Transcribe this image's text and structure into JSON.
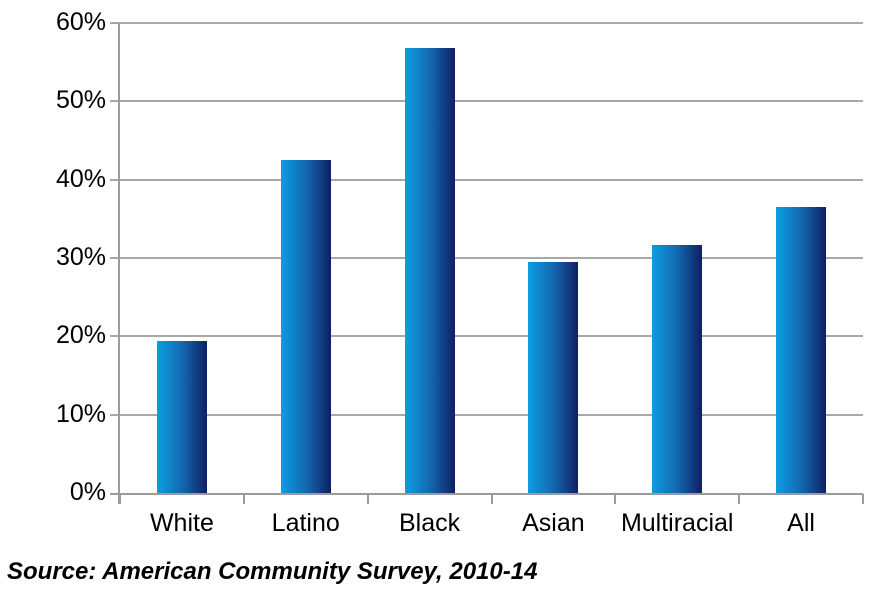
{
  "chart_data": {
    "type": "bar",
    "categories": [
      "White",
      "Latino",
      "Black",
      "Asian",
      "Multiracial",
      "All"
    ],
    "values": [
      19.4,
      42.5,
      56.8,
      29.5,
      31.6,
      36.5
    ],
    "title": "",
    "xlabel": "",
    "ylabel": "",
    "ylim": [
      0,
      60
    ],
    "y_ticks": [
      0,
      10,
      20,
      30,
      40,
      50,
      60
    ],
    "y_tick_labels": [
      "0%",
      "10%",
      "20%",
      "30%",
      "40%",
      "50%",
      "60%"
    ],
    "grid": true,
    "legend": false,
    "bar_gradient": [
      "#0c9ee0",
      "#1366ae",
      "#101f63"
    ],
    "gridline_color": "#a8a8a8",
    "axis_color": "#9b9b9b"
  },
  "source_note": "Source: American Community Survey, 2010-14"
}
